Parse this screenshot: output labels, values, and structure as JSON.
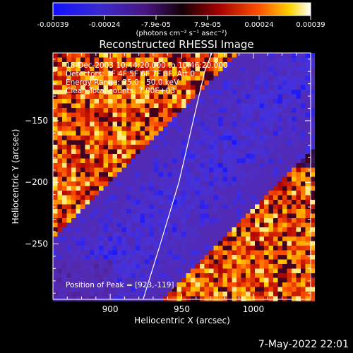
{
  "colorbar": {
    "tick_labels": [
      "-0.00039",
      "-0.00024",
      "-7.9e-05",
      "7.9e-05",
      "0.00024",
      "0.00039"
    ],
    "unit_label": "(photons cm⁻² s⁻¹ asec⁻²)",
    "range": [
      -0.00039,
      0.00039
    ]
  },
  "chart_data": {
    "type": "heatmap",
    "title": "Reconstructed RHESSI Image",
    "xlabel": "Heliocentric X (arcsec)",
    "ylabel": "Heliocentric Y (arcsec)",
    "xlim": [
      860,
      1040
    ],
    "ylim": [
      -295,
      -95
    ],
    "x_ticks": [
      900,
      950,
      1000
    ],
    "y_ticks": [
      -150,
      -200,
      -250
    ],
    "x_tick_labels": [
      "900",
      "950",
      "1000"
    ],
    "y_tick_labels": [
      "−150",
      "−200",
      "−250"
    ],
    "limb_curve": {
      "x": [
        923,
        935,
        948,
        958,
        966,
        971
      ],
      "y": [
        -295,
        -250,
        -200,
        -150,
        -110,
        -95
      ]
    },
    "peak": {
      "x": 923,
      "y": -119
    },
    "info_lines": [
      "18-Dec-2003 10:44:20.000 to 10:46:20.000",
      "Detectors: 3F 4F 5F 6F 7F 8F, Att 0",
      "Energy Range: 25.0 - 50.0 keV",
      "Clean     Total counts: 7.80E+03"
    ],
    "peak_label": "Position of Peak = [923,-119]",
    "grid": false
  },
  "timestamp": "7-May-2022 22:01"
}
